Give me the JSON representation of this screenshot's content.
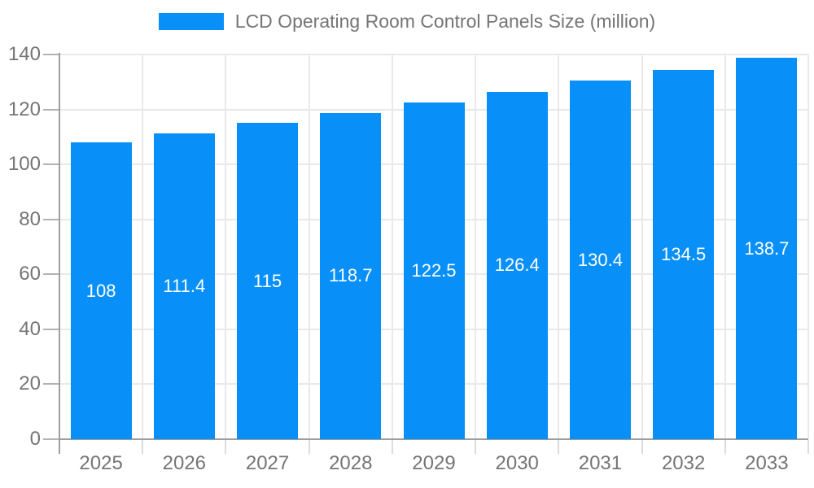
{
  "chart_data": {
    "type": "bar",
    "title": "LCD Operating Room Control Panels Size (million)",
    "categories": [
      "2025",
      "2026",
      "2027",
      "2028",
      "2029",
      "2030",
      "2031",
      "2032",
      "2033"
    ],
    "values": [
      108,
      111.4,
      115,
      118.7,
      122.5,
      126.4,
      130.4,
      134.5,
      138.7
    ],
    "value_labels": [
      "108",
      "111.4",
      "115",
      "118.7",
      "122.5",
      "126.4",
      "130.4",
      "134.5",
      "138.7"
    ],
    "xlabel": "",
    "ylabel": "",
    "ylim": [
      0,
      140
    ],
    "y_tick_step": 20,
    "y_tick_labels": [
      "0",
      "20",
      "40",
      "60",
      "80",
      "100",
      "120",
      "140"
    ],
    "grid": true,
    "legend_position": "top-center",
    "value_label_position": "bar-center"
  },
  "legend": {
    "label": "LCD Operating Room Control Panels Size (million)"
  },
  "colors": {
    "bar": "#0890f8",
    "value_label": "#ffffff",
    "axis_text": "#757575",
    "axis_line": "#9e9e9e",
    "gridline": "#e9e9e9",
    "background": "#ffffff"
  }
}
